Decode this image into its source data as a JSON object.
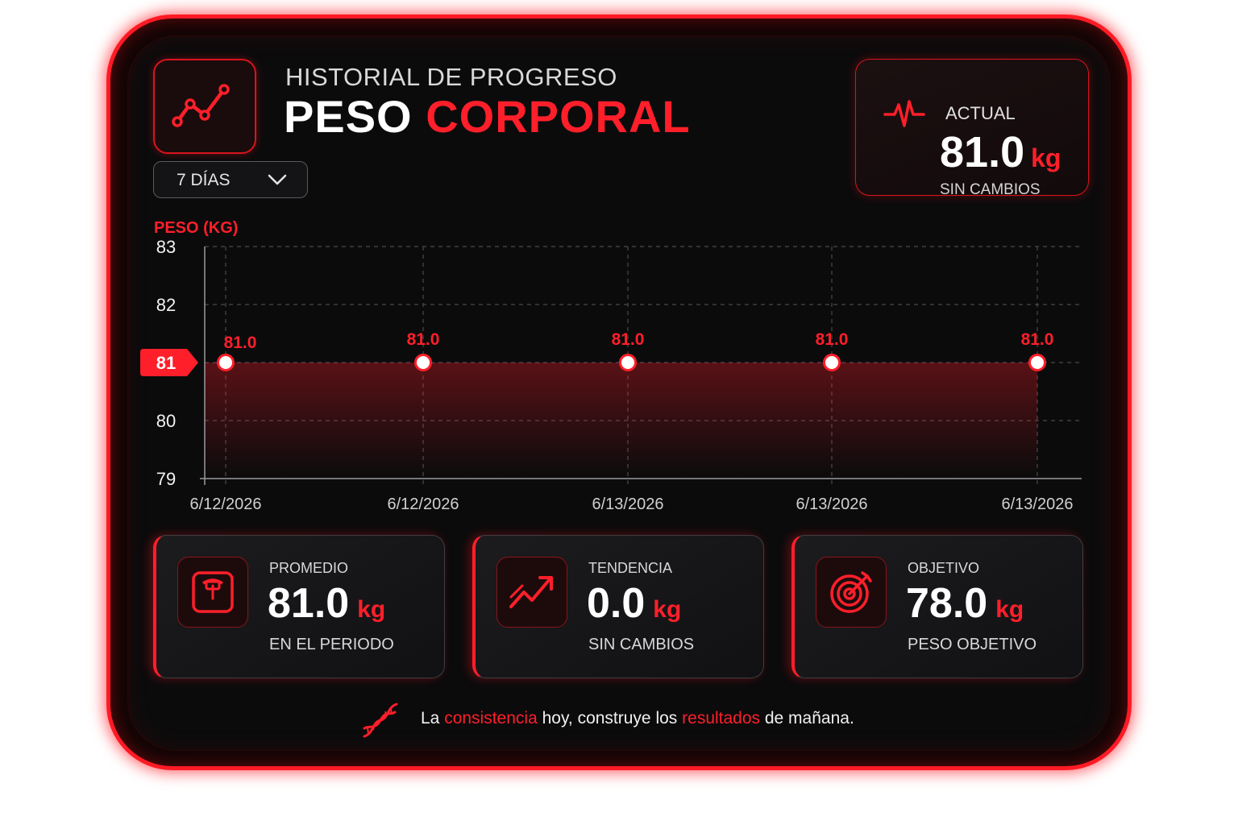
{
  "header": {
    "subtitle": "HISTORIAL DE PROGRESO",
    "title_white": "PESO",
    "title_red": "CORPORAL",
    "logo_icon": "line-chart-icon"
  },
  "range_selector": {
    "value": "7 DÍAS",
    "icon": "chevron-down-icon"
  },
  "current": {
    "caption": "ACTUAL",
    "value": "81.0",
    "unit": "kg",
    "status": "SIN CAMBIOS",
    "icon": "heartbeat-icon"
  },
  "chart_data": {
    "type": "line",
    "ylabel": "PESO (KG)",
    "yticks": [
      "83",
      "82",
      "81",
      "80",
      "79"
    ],
    "ylim": [
      79,
      83
    ],
    "highlight_tick": "81",
    "x": [
      "6/12/2026",
      "6/12/2026",
      "6/13/2026",
      "6/13/2026",
      "6/13/2026"
    ],
    "series": [
      {
        "values": [
          81.0,
          81.0,
          81.0,
          81.0,
          81.0
        ],
        "labels": [
          "81.0",
          "81.0",
          "81.0",
          "81.0",
          "81.0"
        ]
      }
    ],
    "grid": true,
    "color": "#ff1f2a"
  },
  "stats": [
    {
      "caption": "PROMEDIO",
      "value": "81.0",
      "unit": "kg",
      "sub": "EN EL PERIODO",
      "icon": "scale-icon"
    },
    {
      "caption": "TENDENCIA",
      "value": "0.0",
      "unit": "kg",
      "sub": "SIN CAMBIOS",
      "icon": "trend-up-icon"
    },
    {
      "caption": "OBJETIVO",
      "value": "78.0",
      "unit": "kg",
      "sub": "PESO OBJETIVO",
      "icon": "target-icon"
    }
  ],
  "quote": {
    "p1": "La ",
    "h1": "consistencia",
    "p2": " hoy, construye los ",
    "h2": "resultados",
    "p3": " de mañana.",
    "icon": "dna-icon"
  },
  "colors": {
    "accent": "#ff1f2a",
    "background": "#0b0b0c"
  }
}
